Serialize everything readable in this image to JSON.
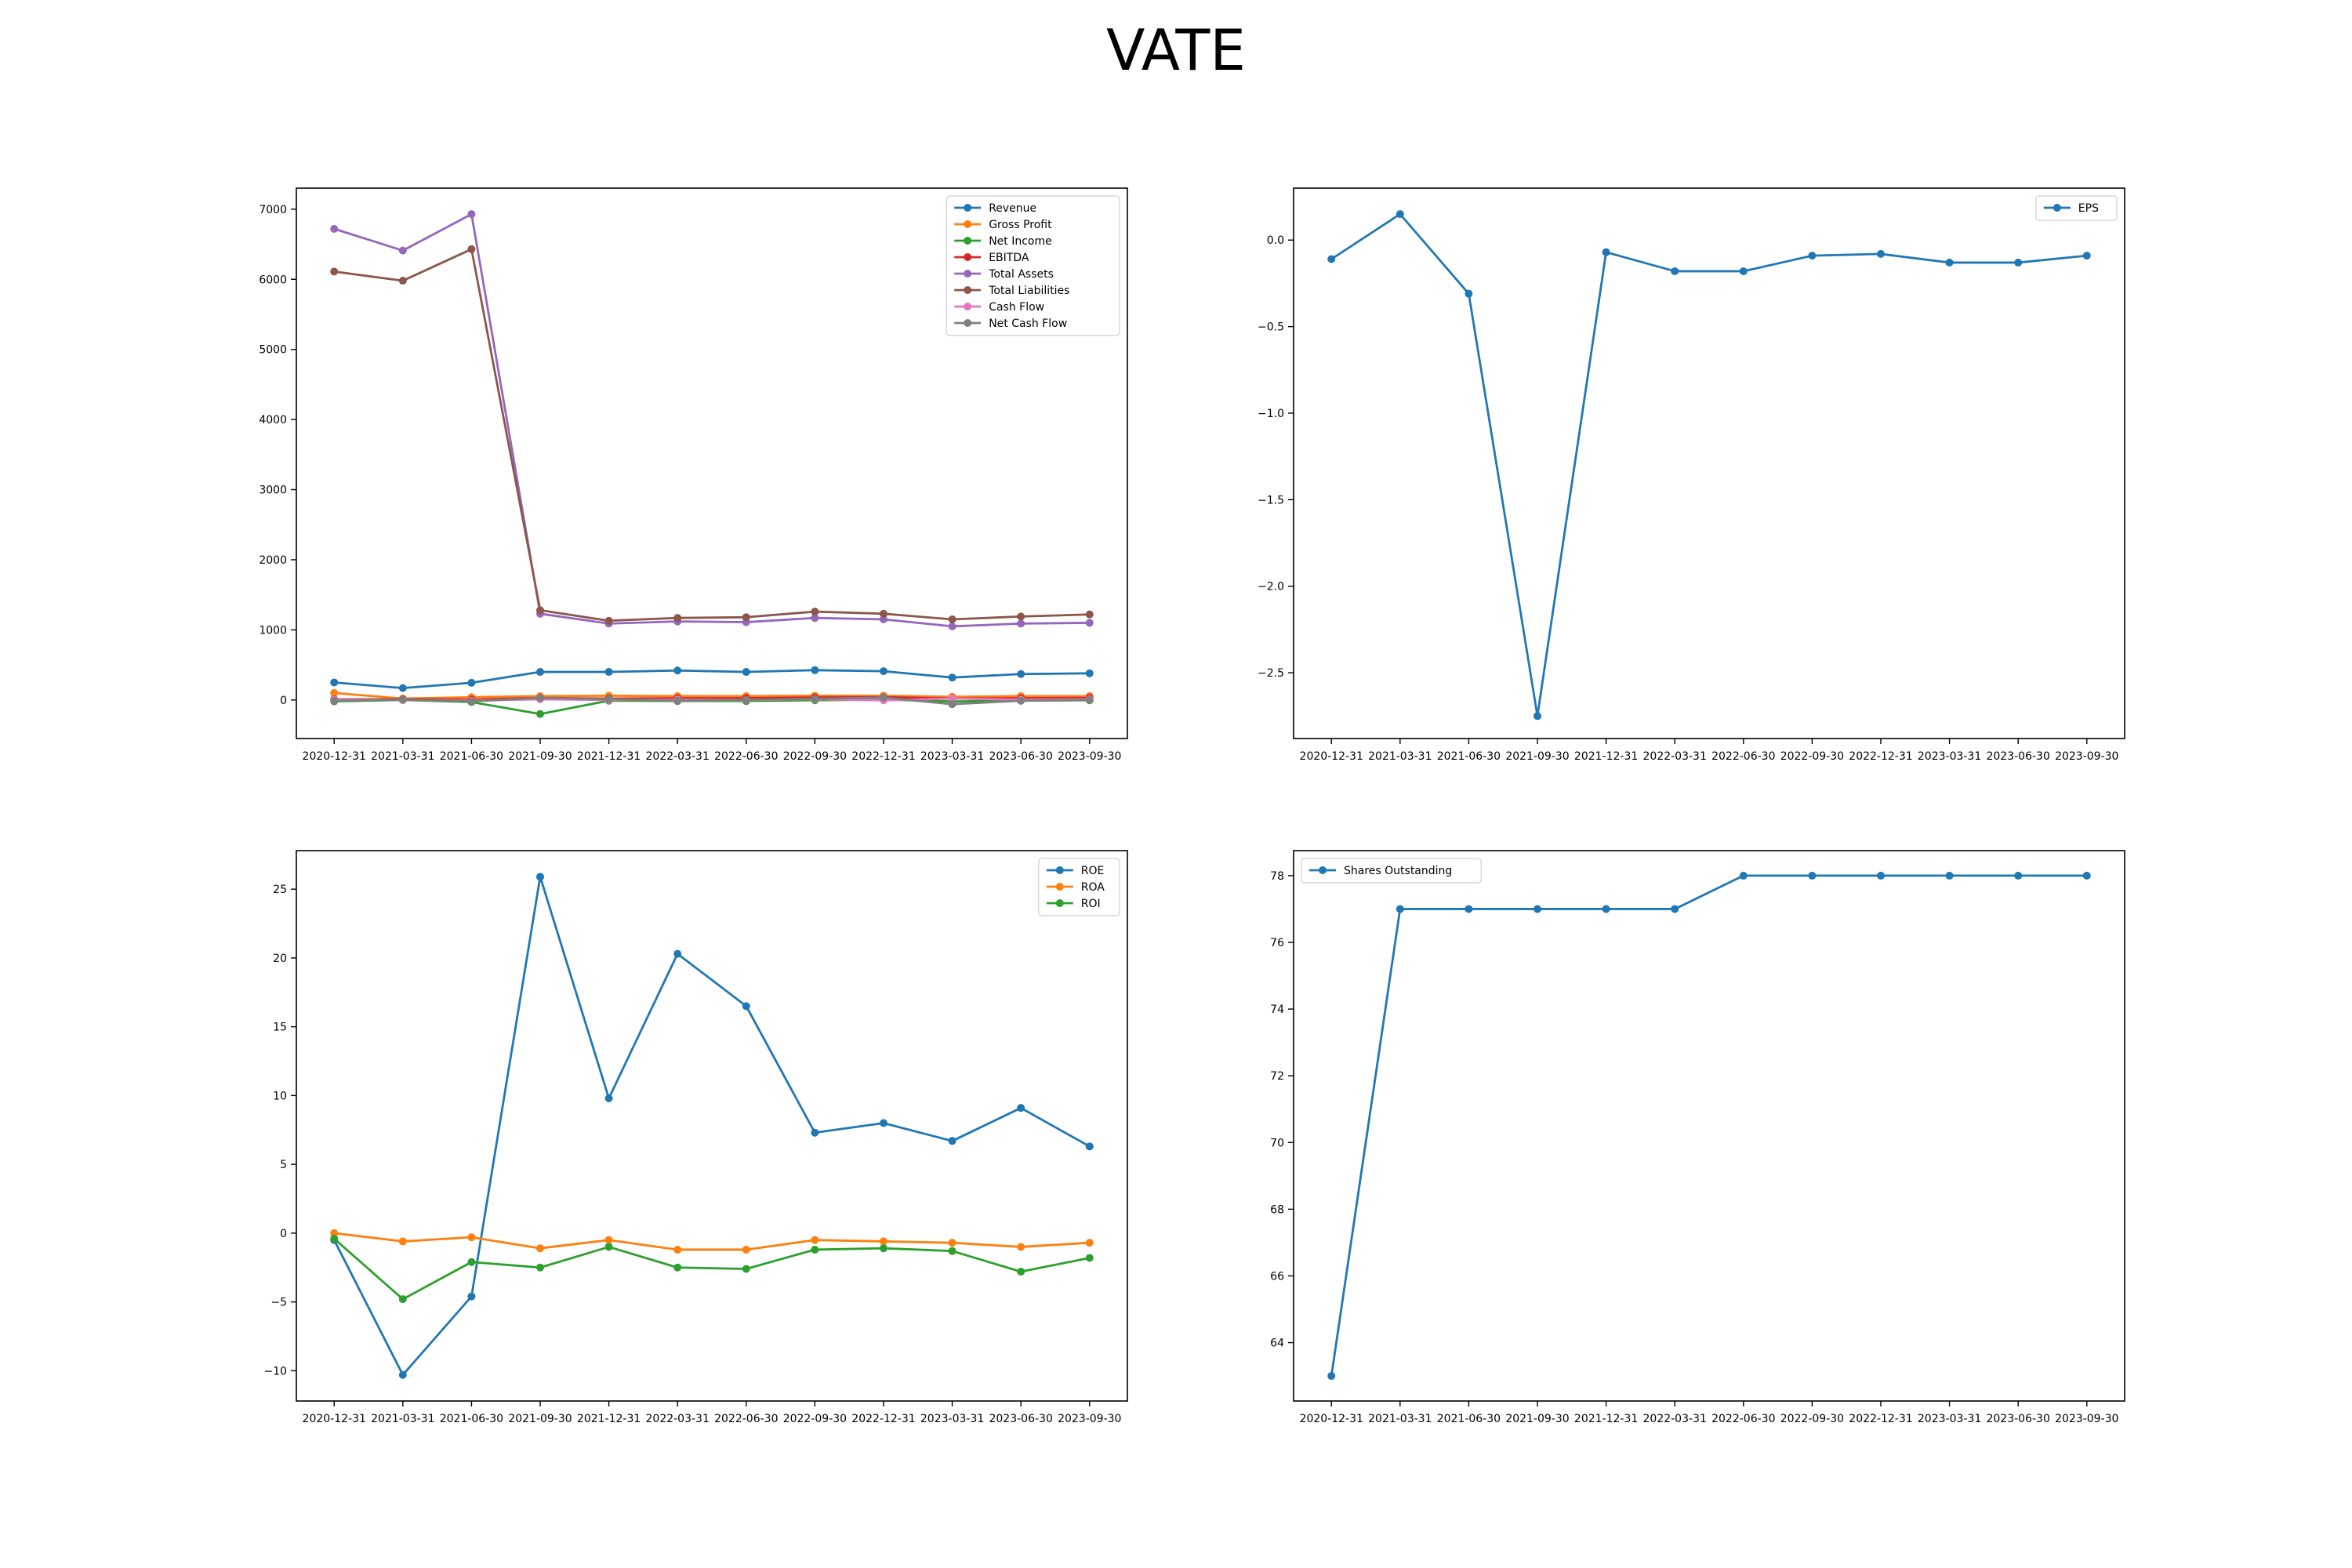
{
  "title": "VATE",
  "chart_data": [
    {
      "type": "line",
      "x": [
        "2020-12-31",
        "2021-03-31",
        "2021-06-30",
        "2021-09-30",
        "2021-12-31",
        "2022-03-31",
        "2022-06-30",
        "2022-09-30",
        "2022-12-31",
        "2023-03-31",
        "2023-06-30",
        "2023-09-30"
      ],
      "ylim": [
        -550,
        7300
      ],
      "yticks": [
        -1000,
        0,
        1000,
        2000,
        3000,
        4000,
        5000,
        6000,
        7000
      ],
      "legend": "top-right",
      "grid": false,
      "series": [
        {
          "name": "Revenue",
          "color": "#1f77b4",
          "values": [
            250,
            170,
            245,
            400,
            400,
            420,
            400,
            425,
            410,
            320,
            370,
            380
          ]
        },
        {
          "name": "Gross Profit",
          "color": "#ff7f0e",
          "values": [
            100,
            20,
            40,
            55,
            60,
            55,
            55,
            60,
            60,
            45,
            55,
            55
          ]
        },
        {
          "name": "Net Income",
          "color": "#2ca02c",
          "values": [
            -20,
            0,
            -30,
            -200,
            -10,
            -15,
            -15,
            -5,
            5,
            -20,
            -10,
            -5
          ]
        },
        {
          "name": "EBITDA",
          "color": "#d62728",
          "values": [
            10,
            10,
            5,
            30,
            20,
            25,
            25,
            35,
            40,
            20,
            25,
            30
          ]
        },
        {
          "name": "Total Assets",
          "color": "#9467bd",
          "values": [
            6720,
            6410,
            6930,
            1230,
            1090,
            1120,
            1110,
            1170,
            1150,
            1050,
            1090,
            1100
          ]
        },
        {
          "name": "Total Liabilities",
          "color": "#8c564b",
          "values": [
            6110,
            5980,
            6430,
            1280,
            1130,
            1170,
            1180,
            1260,
            1230,
            1150,
            1190,
            1220
          ]
        },
        {
          "name": "Cash Flow",
          "color": "#e377c2",
          "values": [
            5,
            0,
            -10,
            10,
            0,
            5,
            0,
            10,
            -5,
            20,
            5,
            10
          ]
        },
        {
          "name": "Net Cash Flow",
          "color": "#7f7f7f",
          "values": [
            -10,
            5,
            -20,
            30,
            10,
            -10,
            0,
            15,
            35,
            -60,
            -10,
            0
          ]
        }
      ]
    },
    {
      "type": "line",
      "x": [
        "2020-12-31",
        "2021-03-31",
        "2021-06-30",
        "2021-09-30",
        "2021-12-31",
        "2022-03-31",
        "2022-06-30",
        "2022-09-30",
        "2022-12-31",
        "2023-03-31",
        "2023-06-30",
        "2023-09-30"
      ],
      "ylim": [
        -2.88,
        0.3
      ],
      "yticks": [
        -2.5,
        -2.0,
        -1.5,
        -1.0,
        -0.5,
        0.0
      ],
      "ytick_labels": [
        "−2.5",
        "−2.0",
        "−1.5",
        "−1.0",
        "−0.5",
        "0.0"
      ],
      "legend": "top-right",
      "grid": false,
      "series": [
        {
          "name": "EPS",
          "color": "#1f77b4",
          "values": [
            -0.11,
            0.15,
            -0.31,
            -2.75,
            -0.07,
            -0.18,
            -0.18,
            -0.09,
            -0.08,
            -0.13,
            -0.13,
            -0.09
          ]
        }
      ]
    },
    {
      "type": "line",
      "x": [
        "2020-12-31",
        "2021-03-31",
        "2021-06-30",
        "2021-09-30",
        "2021-12-31",
        "2022-03-31",
        "2022-06-30",
        "2022-09-30",
        "2022-12-31",
        "2023-03-31",
        "2023-06-30",
        "2023-09-30"
      ],
      "ylim": [
        -12.2,
        27.8
      ],
      "yticks": [
        -10,
        -5,
        0,
        5,
        10,
        15,
        20,
        25
      ],
      "legend": "top-right",
      "grid": false,
      "series": [
        {
          "name": "ROE",
          "color": "#1f77b4",
          "values": [
            -0.5,
            -10.3,
            -4.6,
            25.9,
            9.8,
            20.3,
            16.5,
            7.3,
            8.0,
            6.7,
            9.1,
            6.3
          ]
        },
        {
          "name": "ROA",
          "color": "#ff7f0e",
          "values": [
            0.0,
            -0.6,
            -0.3,
            -1.1,
            -0.5,
            -1.2,
            -1.2,
            -0.5,
            -0.6,
            -0.7,
            -1.0,
            -0.7
          ]
        },
        {
          "name": "ROI",
          "color": "#2ca02c",
          "values": [
            -0.4,
            -4.8,
            -2.1,
            -2.5,
            -1.0,
            -2.5,
            -2.6,
            -1.2,
            -1.1,
            -1.3,
            -2.8,
            -1.8
          ]
        }
      ]
    },
    {
      "type": "line",
      "x": [
        "2020-12-31",
        "2021-03-31",
        "2021-06-30",
        "2021-09-30",
        "2021-12-31",
        "2022-03-31",
        "2022-06-30",
        "2022-09-30",
        "2022-12-31",
        "2023-03-31",
        "2023-06-30",
        "2023-09-30"
      ],
      "ylim": [
        62.25,
        78.75
      ],
      "yticks": [
        64,
        66,
        68,
        70,
        72,
        74,
        76,
        78
      ],
      "legend": "top-left",
      "grid": false,
      "series": [
        {
          "name": "Shares Outstanding",
          "color": "#1f77b4",
          "values": [
            63,
            77,
            77,
            77,
            77,
            77,
            78,
            78,
            78,
            78,
            78,
            78
          ]
        }
      ]
    }
  ]
}
